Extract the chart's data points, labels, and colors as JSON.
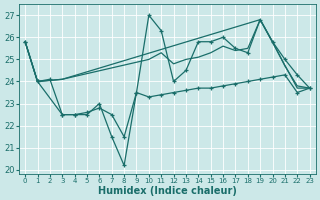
{
  "xlabel": "Humidex (Indice chaleur)",
  "bg_color": "#cce8e8",
  "grid_color": "#ffffff",
  "line_color": "#1a6e6a",
  "xlim": [
    -0.5,
    23.5
  ],
  "ylim": [
    19.8,
    27.5
  ],
  "yticks": [
    20,
    21,
    22,
    23,
    24,
    25,
    26,
    27
  ],
  "xticks": [
    0,
    1,
    2,
    3,
    4,
    5,
    6,
    7,
    8,
    9,
    10,
    11,
    12,
    13,
    14,
    15,
    16,
    17,
    18,
    19,
    20,
    21,
    22,
    23
  ],
  "series": [
    {
      "x": [
        0,
        1,
        2,
        3,
        4,
        5,
        6,
        7,
        8,
        9,
        10,
        11,
        12,
        13,
        14,
        15,
        16,
        17,
        18,
        19,
        20,
        21,
        22,
        23
      ],
      "y": [
        25.8,
        24.0,
        24.1,
        22.5,
        22.5,
        22.5,
        23.0,
        21.5,
        20.2,
        23.5,
        27.0,
        26.3,
        24.0,
        24.5,
        25.8,
        25.8,
        26.0,
        25.5,
        25.3,
        26.8,
        25.8,
        25.0,
        24.3,
        23.7
      ],
      "marker": true,
      "lw": 0.9
    },
    {
      "x": [
        0,
        1,
        3,
        19,
        22,
        23
      ],
      "y": [
        25.8,
        24.0,
        24.1,
        26.8,
        23.7,
        23.7
      ],
      "marker": false,
      "lw": 0.9
    },
    {
      "x": [
        0,
        1,
        3,
        10,
        11,
        12,
        13,
        14,
        15,
        16,
        17,
        18,
        19,
        20,
        21,
        22,
        23
      ],
      "y": [
        25.8,
        24.0,
        24.1,
        25.0,
        25.3,
        24.8,
        25.0,
        25.1,
        25.3,
        25.6,
        25.4,
        25.5,
        26.8,
        25.8,
        24.7,
        23.8,
        23.7
      ],
      "marker": false,
      "lw": 0.9
    },
    {
      "x": [
        0,
        1,
        3,
        4,
        5,
        6,
        7,
        8,
        9,
        10,
        11,
        12,
        13,
        14,
        15,
        16,
        17,
        18,
        19,
        20,
        21,
        22,
        23
      ],
      "y": [
        25.8,
        24.0,
        22.5,
        22.5,
        22.6,
        22.8,
        22.5,
        21.5,
        23.5,
        23.3,
        23.4,
        23.5,
        23.6,
        23.7,
        23.7,
        23.8,
        23.9,
        24.0,
        24.1,
        24.2,
        24.3,
        23.5,
        23.7
      ],
      "marker": true,
      "lw": 0.9
    }
  ],
  "font_size": 7,
  "tick_font_size": 6
}
